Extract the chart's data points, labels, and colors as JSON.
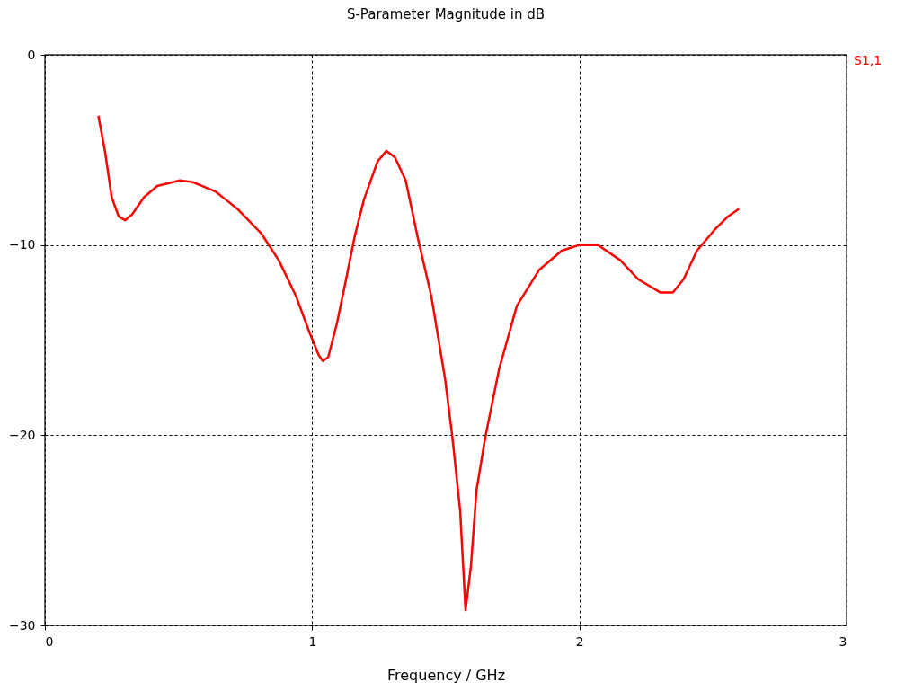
{
  "chart_data": {
    "type": "line",
    "title": "S-Parameter Magnitude in dB",
    "xlabel": "Frequency / GHz",
    "x": [
      0.2,
      0.225,
      0.25,
      0.276,
      0.3,
      0.326,
      0.37,
      0.42,
      0.505,
      0.555,
      0.64,
      0.72,
      0.81,
      0.875,
      0.94,
      0.99,
      1.025,
      1.04,
      1.06,
      1.093,
      1.127,
      1.16,
      1.194,
      1.245,
      1.278,
      1.31,
      1.35,
      1.395,
      1.446,
      1.497,
      1.524,
      1.554,
      1.574,
      1.594,
      1.615,
      1.648,
      1.7,
      1.766,
      1.85,
      1.934,
      2.0,
      2.07,
      2.153,
      2.22,
      2.304,
      2.35,
      2.39,
      2.44,
      2.506,
      2.556,
      2.597
    ],
    "series": [
      {
        "name": "S1,1",
        "color": "#ff0000",
        "values": [
          -3.2,
          -5.1,
          -7.5,
          -8.5,
          -8.7,
          -8.4,
          -7.5,
          -6.9,
          -6.6,
          -6.7,
          -7.2,
          -8.1,
          -9.4,
          -10.8,
          -12.7,
          -14.6,
          -15.8,
          -16.1,
          -15.9,
          -14.1,
          -11.8,
          -9.5,
          -7.6,
          -5.6,
          -5.05,
          -5.4,
          -6.6,
          -9.6,
          -12.7,
          -17.0,
          -20.0,
          -24.0,
          -29.2,
          -26.9,
          -22.9,
          -20.1,
          -16.5,
          -13.2,
          -11.3,
          -10.3,
          -10.0,
          -10.0,
          -10.8,
          -11.8,
          -12.5,
          -12.5,
          -11.8,
          -10.3,
          -9.2,
          -8.5,
          -8.1
        ]
      }
    ],
    "xlim": [
      0,
      3
    ],
    "ylim": [
      -30,
      0
    ],
    "xticks": [
      0,
      1,
      2,
      3
    ],
    "yticks": [
      -30,
      -20,
      -10,
      0
    ],
    "grid": true,
    "legend": "top right"
  }
}
